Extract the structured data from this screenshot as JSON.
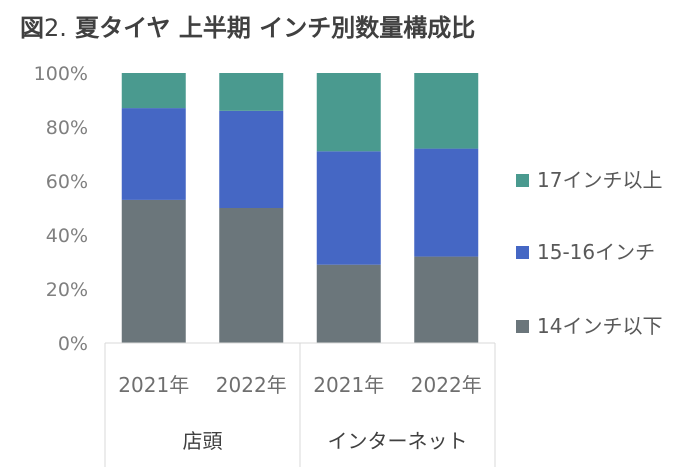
{
  "title": {
    "prefix": "図",
    "number": "2.",
    "text": " 夏タイヤ 上半期 インチ別数量構成比"
  },
  "chart_data": {
    "type": "bar",
    "stacked": true,
    "title": "図2. 夏タイヤ 上半期 インチ別数量構成比",
    "categories": [
      "2021年",
      "2022年",
      "2021年",
      "2022年"
    ],
    "groups": [
      {
        "label": "店頭",
        "categories": [
          0,
          1
        ]
      },
      {
        "label": "インターネット",
        "categories": [
          2,
          3
        ]
      }
    ],
    "series": [
      {
        "name": "14インチ以下",
        "color": "#6b767b",
        "values": [
          53,
          50,
          29,
          32
        ]
      },
      {
        "name": "15-16インチ",
        "color": "#4567c4",
        "values": [
          34,
          36,
          42,
          40
        ]
      },
      {
        "name": "17インチ以上",
        "color": "#4a9a8f",
        "values": [
          13,
          14,
          29,
          28
        ]
      }
    ],
    "legend_order": [
      "17インチ以上",
      "15-16インチ",
      "14インチ以下"
    ],
    "legend_position": "right",
    "ylim": [
      0,
      100
    ],
    "yticks": [
      "0%",
      "20%",
      "40%",
      "60%",
      "80%",
      "100%"
    ],
    "grid": false
  }
}
